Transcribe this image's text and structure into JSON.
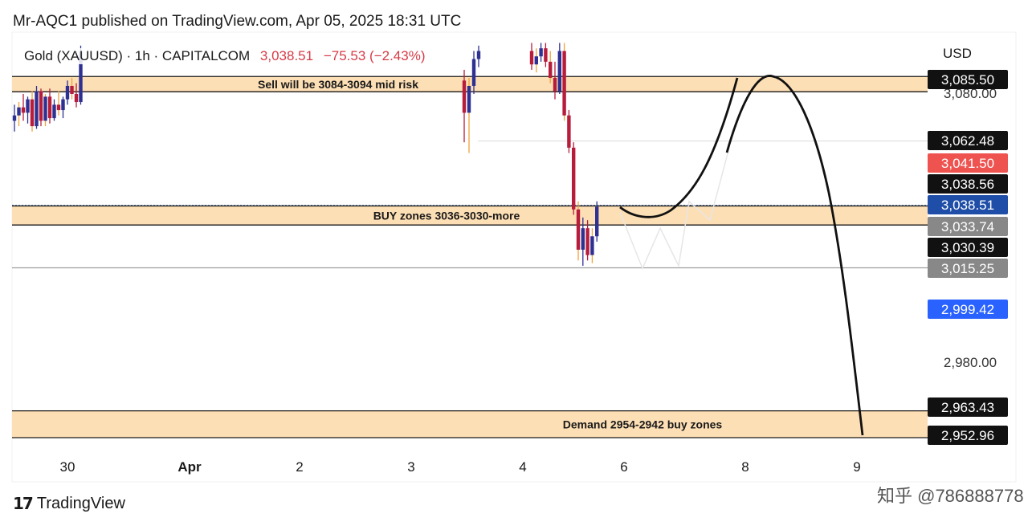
{
  "header": {
    "published_line": "Mr-AQC1 published on TradingView.com, Apr 05, 2025 18:31 UTC"
  },
  "legend": {
    "symbol_line": "Gold (XAUUSD) · 1h · CAPITALCOM",
    "last_price": "3,038.51",
    "change": "−75.53 (−2.43%)"
  },
  "currency": "USD",
  "footer": {
    "brand": "TradingView",
    "watermark": "知乎 @786888778"
  },
  "colors": {
    "zone_fill": "#fdd9a8",
    "bull_candle": "#2e3192",
    "bear_candle": "#b71c3b",
    "wick_accent": "#f0a23a",
    "label_black": "#111111",
    "label_red": "#ef5350",
    "label_blue": "#1f4ea8",
    "label_grey": "#888888",
    "label_bright_blue": "#2962ff"
  },
  "chart_data": {
    "type": "candlestick",
    "symbol": "XAUUSD",
    "timeframe": "1h",
    "x_ticks": [
      "30",
      "Apr",
      "2",
      "3",
      "4",
      "6",
      "8",
      "9"
    ],
    "y_axis_ticks": [
      "3,080.00",
      "2,980.00"
    ],
    "zones": [
      {
        "label": "Sell will be 3084-3094 mid risk",
        "top": 3086.5,
        "bottom": 3080.8
      },
      {
        "label": "BUY zones 3036-3030-more",
        "top": 3038.3,
        "bottom": 3031.2
      },
      {
        "label": "Demand 2954-2942 buy zones",
        "top": 2962.0,
        "bottom": 2952.0
      }
    ],
    "price_labels": [
      {
        "value": "3,085.50",
        "style": "black"
      },
      {
        "value": "3,062.48",
        "style": "black"
      },
      {
        "value": "3,041.50",
        "style": "red"
      },
      {
        "value": "3,038.56",
        "style": "black"
      },
      {
        "value": "3,038.51",
        "style": "blue"
      },
      {
        "value": "3,033.74",
        "style": "grey"
      },
      {
        "value": "3,030.39",
        "style": "black"
      },
      {
        "value": "3,015.25",
        "style": "grey"
      },
      {
        "value": "2,999.42",
        "style": "bright-blue"
      },
      {
        "value": "2,963.43",
        "style": "black"
      },
      {
        "value": "2,952.96",
        "style": "black"
      }
    ],
    "candles_left": [
      {
        "o": 3070,
        "h": 3076,
        "l": 3066,
        "c": 3072
      },
      {
        "o": 3072,
        "h": 3077,
        "l": 3068,
        "c": 3075
      },
      {
        "o": 3075,
        "h": 3080,
        "l": 3070,
        "c": 3073
      },
      {
        "o": 3073,
        "h": 3079,
        "l": 3069,
        "c": 3078
      },
      {
        "o": 3078,
        "h": 3081,
        "l": 3066,
        "c": 3068
      },
      {
        "o": 3068,
        "h": 3083,
        "l": 3067,
        "c": 3081
      },
      {
        "o": 3081,
        "h": 3082,
        "l": 3068,
        "c": 3070
      },
      {
        "o": 3070,
        "h": 3080,
        "l": 3068,
        "c": 3079
      },
      {
        "o": 3079,
        "h": 3082,
        "l": 3069,
        "c": 3071
      },
      {
        "o": 3071,
        "h": 3078,
        "l": 3070,
        "c": 3076
      },
      {
        "o": 3076,
        "h": 3081,
        "l": 3072,
        "c": 3074
      },
      {
        "o": 3074,
        "h": 3079,
        "l": 3071,
        "c": 3078
      },
      {
        "o": 3078,
        "h": 3085,
        "l": 3076,
        "c": 3083
      },
      {
        "o": 3083,
        "h": 3086,
        "l": 3078,
        "c": 3080
      },
      {
        "o": 3080,
        "h": 3084,
        "l": 3075,
        "c": 3077
      },
      {
        "o": 3077,
        "h": 3098,
        "l": 3076,
        "c": 3096
      }
    ],
    "candles_mid": [
      {
        "o": 3085,
        "h": 3089,
        "l": 3062,
        "c": 3073
      },
      {
        "o": 3073,
        "h": 3086,
        "l": 3058,
        "c": 3083
      },
      {
        "o": 3083,
        "h": 3096,
        "l": 3080,
        "c": 3093
      },
      {
        "o": 3093,
        "h": 3098,
        "l": 3090,
        "c": 3096
      }
    ],
    "candles_right": [
      {
        "o": 3096,
        "h": 3099,
        "l": 3089,
        "c": 3091
      },
      {
        "o": 3091,
        "h": 3097,
        "l": 3088,
        "c": 3094
      },
      {
        "o": 3094,
        "h": 3099,
        "l": 3092,
        "c": 3097
      },
      {
        "o": 3097,
        "h": 3099,
        "l": 3090,
        "c": 3092
      },
      {
        "o": 3092,
        "h": 3096,
        "l": 3084,
        "c": 3086
      },
      {
        "o": 3086,
        "h": 3092,
        "l": 3078,
        "c": 3081
      },
      {
        "o": 3081,
        "h": 3099,
        "l": 3080,
        "c": 3096
      },
      {
        "o": 3096,
        "h": 3099,
        "l": 3070,
        "c": 3072
      },
      {
        "o": 3072,
        "h": 3074,
        "l": 3058,
        "c": 3060
      },
      {
        "o": 3060,
        "h": 3062,
        "l": 3035,
        "c": 3037
      },
      {
        "o": 3037,
        "h": 3040,
        "l": 3018,
        "c": 3022
      },
      {
        "o": 3022,
        "h": 3034,
        "l": 3016,
        "c": 3030
      },
      {
        "o": 3030,
        "h": 3033,
        "l": 3018,
        "c": 3020
      },
      {
        "o": 3020,
        "h": 3030,
        "l": 3017,
        "c": 3027
      },
      {
        "o": 3027,
        "h": 3040,
        "l": 3025,
        "c": 3038
      }
    ],
    "projection_path": [
      {
        "day": 6.0,
        "price": 3039
      },
      {
        "day": 6.25,
        "price": 3035
      },
      {
        "day": 6.6,
        "price": 3042
      },
      {
        "day": 7.0,
        "price": 3058
      },
      {
        "day": 7.35,
        "price": 3080
      },
      {
        "day": 7.45,
        "price": 3085
      }
    ],
    "projection_path_2": [
      {
        "day": 7.7,
        "price": 3083
      },
      {
        "day": 8.15,
        "price": 3086
      },
      {
        "day": 8.6,
        "price": 3070
      },
      {
        "day": 8.85,
        "price": 3020
      },
      {
        "day": 9.05,
        "price": 2954
      }
    ]
  }
}
